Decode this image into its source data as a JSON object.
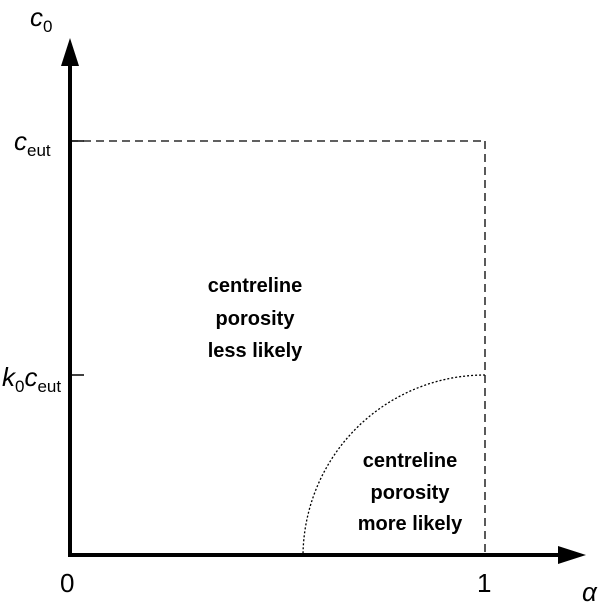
{
  "axes": {
    "y_label": [
      "c",
      "0"
    ],
    "x_label": "α",
    "x_origin": "0",
    "x_end": "1"
  },
  "y_marks": [
    [
      "c",
      "eut"
    ],
    [
      "k",
      "0",
      "c",
      "eut"
    ]
  ],
  "regions": [
    {
      "lines": [
        "centreline",
        "porosity",
        "less likely"
      ]
    },
    {
      "lines": [
        "centreline",
        "porosity",
        "more likely"
      ]
    }
  ]
}
